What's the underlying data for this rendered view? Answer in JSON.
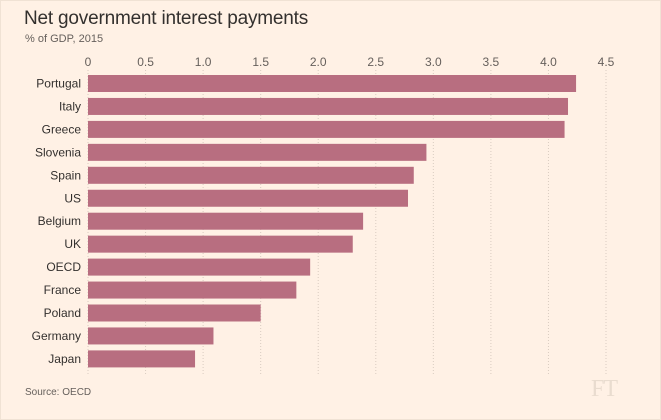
{
  "header": {
    "title": "Net government interest payments",
    "subtitle": "% of GDP, 2015"
  },
  "footer": {
    "source": "Source: OECD",
    "logo_text": "FT"
  },
  "colors": {
    "background": "#fff1e5",
    "bar": "#b86e80",
    "text": "#33302e",
    "muted": "#66605c"
  },
  "chart_data": {
    "type": "bar",
    "orientation": "horizontal",
    "title": "Net government interest payments",
    "subtitle": "% of GDP, 2015",
    "xlabel": "",
    "ylabel": "",
    "xlim": [
      0,
      4.5
    ],
    "x_ticks": [
      0,
      0.5,
      1.0,
      1.5,
      2.0,
      2.5,
      3.0,
      3.5,
      4.0,
      4.5
    ],
    "x_tick_labels": [
      "0",
      "0.5",
      "1.0",
      "1.5",
      "2.0",
      "2.5",
      "3.0",
      "3.5",
      "4.0",
      "4.5"
    ],
    "grid": true,
    "categories": [
      "Portugal",
      "Italy",
      "Greece",
      "Slovenia",
      "Spain",
      "US",
      "Belgium",
      "UK",
      "OECD",
      "France",
      "Poland",
      "Germany",
      "Japan"
    ],
    "values": [
      4.24,
      4.17,
      4.14,
      2.94,
      2.83,
      2.78,
      2.39,
      2.3,
      1.93,
      1.81,
      1.5,
      1.09,
      0.93
    ]
  }
}
